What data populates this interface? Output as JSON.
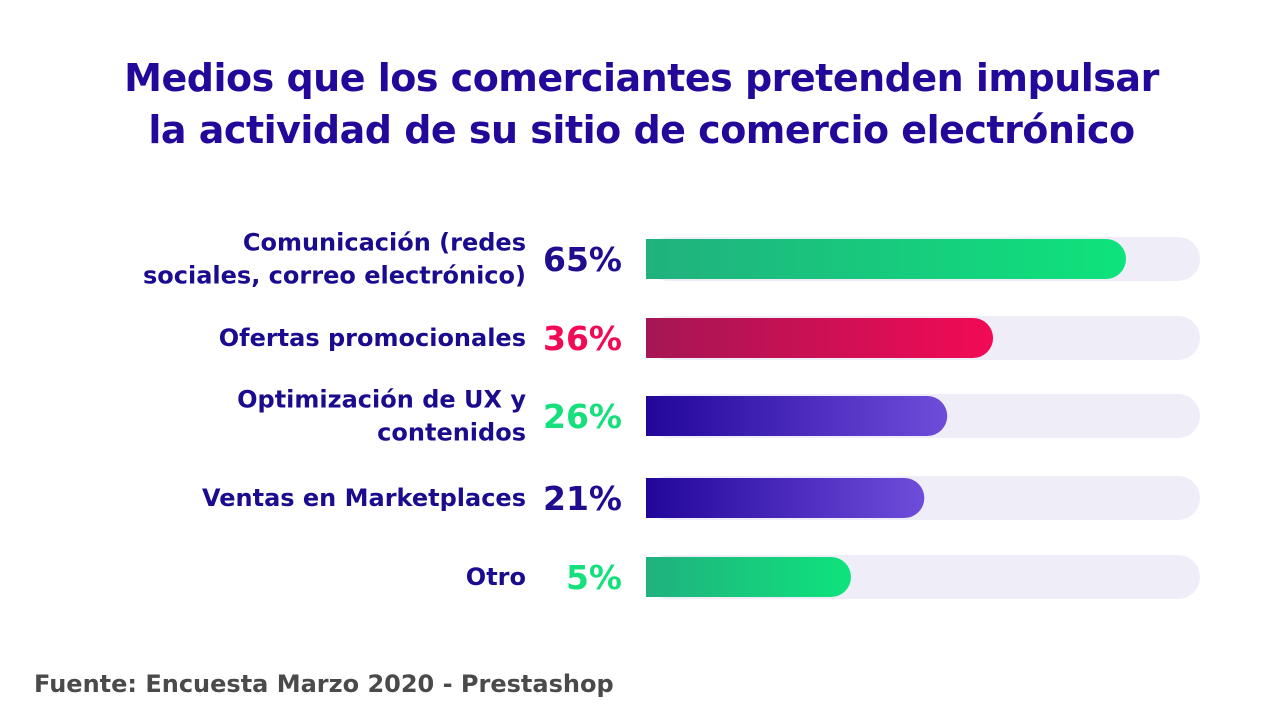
{
  "title": {
    "line1": "Medios que los comerciantes pretenden impulsar",
    "line2": "la actividad de su sitio de comercio electrónico"
  },
  "source": "Fuente: Encuesta Marzo 2020 - Prestashop",
  "colors": {
    "title": "#23089a",
    "track": "#efedf7",
    "green_start": "#21b17e",
    "green_end": "#0ee37c",
    "red_start": "#a51654",
    "red_end": "#f20a55",
    "purple_start": "#22069a",
    "purple_end": "#6f4ddb"
  },
  "chart_data": {
    "type": "bar",
    "orientation": "horizontal",
    "title": "Medios que los comerciantes pretenden impulsar la actividad de su sitio de comercio electrónico",
    "categories": [
      [
        "Comunicación (redes",
        "sociales, correo electrónico)"
      ],
      [
        "Ofertas promocionales"
      ],
      [
        "Optimización de UX y",
        "contenidos"
      ],
      [
        "Ventas en Marketplaces"
      ],
      [
        "Otro"
      ]
    ],
    "values": [
      65,
      36,
      26,
      21,
      5
    ],
    "value_labels": [
      "65%",
      "36%",
      "26%",
      "21%",
      "5%"
    ],
    "bar_styles": [
      "green",
      "red",
      "purple",
      "purple",
      "green"
    ],
    "label_colors": [
      "#1f0c8f",
      "#f20a55",
      "#15e07c",
      "#1f0c8f",
      "#15e07c"
    ],
    "unit": "%",
    "xlim": [
      0,
      100
    ],
    "grid": false,
    "legend": "none"
  }
}
